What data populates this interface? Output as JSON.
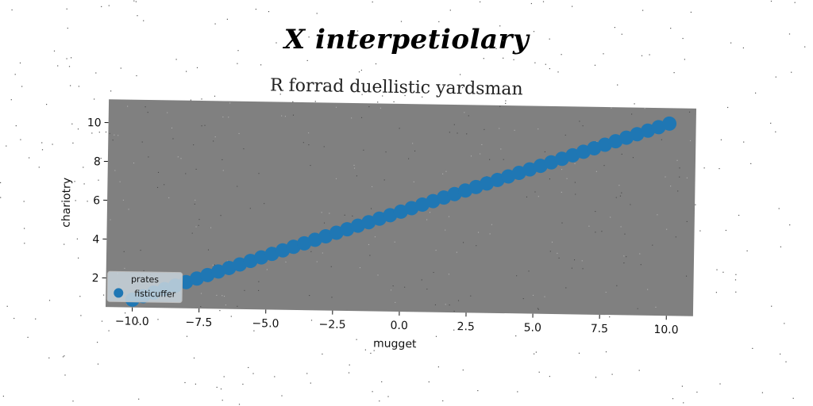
{
  "suptitle": "X interpetiolary",
  "chart_data": {
    "type": "scatter",
    "title": "R forrad duellistic yardsman",
    "xlabel": "mugget",
    "ylabel": "chariotry",
    "xlim": [
      -11,
      11
    ],
    "ylim": [
      0.5,
      11.2
    ],
    "xticks": [
      -10.0,
      -7.5,
      -5.0,
      -2.5,
      0.0,
      2.5,
      5.0,
      7.5,
      10.0
    ],
    "xtick_labels": [
      "−10.0",
      "−7.5",
      "−5.0",
      "−2.5",
      "0.0",
      "2.5",
      "5.0",
      "7.5",
      "10.0"
    ],
    "yticks": [
      2,
      4,
      6,
      8,
      10
    ],
    "ytick_labels": [
      "2",
      "4",
      "6",
      "8",
      "10"
    ],
    "grid": false,
    "legend": {
      "title": "prates",
      "placement": "lower-left",
      "entries": [
        "fisticuffer"
      ]
    },
    "series": [
      {
        "name": "fisticuffer",
        "color": "#1f77b4",
        "x": [
          -10.0,
          -9.6,
          -9.2,
          -8.8,
          -8.4,
          -8.0,
          -7.6,
          -7.2,
          -6.8,
          -6.4,
          -6.0,
          -5.6,
          -5.2,
          -4.8,
          -4.4,
          -4.0,
          -3.6,
          -3.2,
          -2.8,
          -2.4,
          -2.0,
          -1.6,
          -1.2,
          -0.8,
          -0.4,
          0.0,
          0.4,
          0.8,
          1.2,
          1.6,
          2.0,
          2.4,
          2.8,
          3.2,
          3.6,
          4.0,
          4.4,
          4.8,
          5.2,
          5.6,
          6.0,
          6.4,
          6.8,
          7.2,
          7.6,
          8.0,
          8.4,
          8.8,
          9.2,
          9.6,
          10.0
        ],
        "y": [
          0.9,
          1.09,
          1.28,
          1.47,
          1.66,
          1.85,
          2.04,
          2.23,
          2.42,
          2.61,
          2.8,
          2.99,
          3.18,
          3.37,
          3.56,
          3.75,
          3.94,
          4.13,
          4.32,
          4.51,
          4.7,
          4.89,
          5.08,
          5.27,
          5.46,
          5.65,
          5.84,
          6.03,
          6.22,
          6.41,
          6.6,
          6.79,
          6.98,
          7.17,
          7.36,
          7.55,
          7.74,
          7.93,
          8.12,
          8.31,
          8.5,
          8.69,
          8.88,
          9.07,
          9.26,
          9.45,
          9.64,
          9.83,
          10.02,
          10.21,
          10.4
        ]
      }
    ]
  }
}
